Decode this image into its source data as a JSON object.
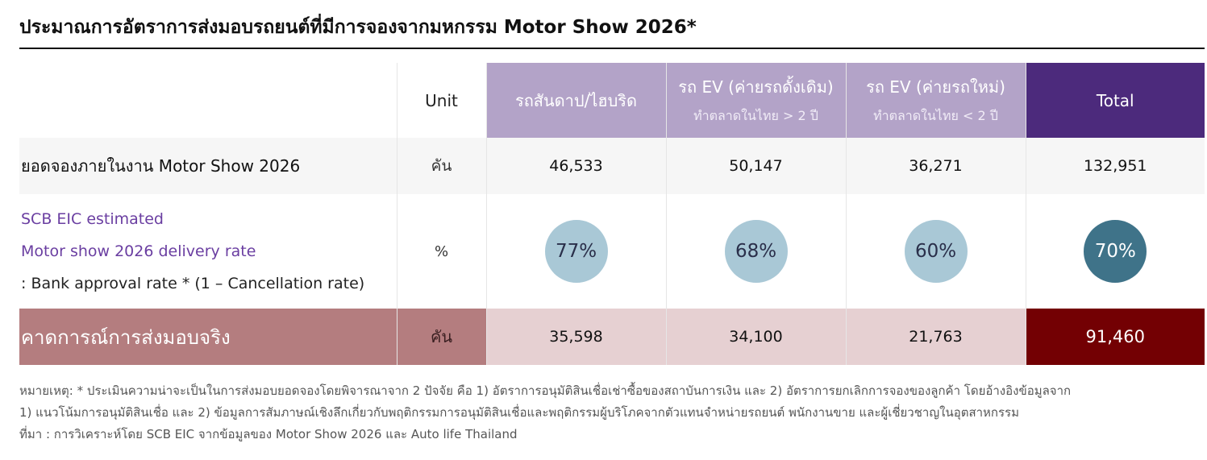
{
  "title": "ประมาณการอัตราการส่งมอบรถยนต์ที่มีการจองจากมหกรรม Motor Show 2026*",
  "header": {
    "unit": "Unit",
    "col1": "รถสันดาป/ไฮบริด",
    "col2": "รถ EV (ค่ายรถดั้งเดิม)",
    "col2_sub": "ทำตลาดในไทย > 2 ปี",
    "col3": "รถ EV (ค่ายรถใหม่)",
    "col3_sub": "ทำตลาดในไทย < 2 ปี",
    "total": "Total"
  },
  "rows": {
    "bookings": {
      "label": "ยอดจองภายในงาน Motor Show 2026",
      "unit": "คัน",
      "values": [
        "46,533",
        "50,147",
        "36,271"
      ],
      "total": "132,951"
    },
    "rate": {
      "label_line1": "SCB EIC estimated",
      "label_line2": "Motor show 2026 delivery rate",
      "label_line3": ": Bank approval rate * (1 – Cancellation rate)",
      "unit": "%",
      "values": [
        "77%",
        "68%",
        "60%"
      ],
      "total": "70%"
    },
    "forecast": {
      "label": "คาดการณ์การส่งมอบจริง",
      "unit": "คัน",
      "values": [
        "35,598",
        "34,100",
        "21,763"
      ],
      "total": "91,460"
    }
  },
  "notes": {
    "line1": "หมายเหตุ: * ประเมินความน่าจะเป็นในการส่งมอบยอดจองโดยพิจารณาจาก 2 ปัจจัย คือ 1) อัตราการอนุมัติสินเชื่อเช่าซื้อของสถาบันการเงิน และ 2) อัตราการยกเลิกการจองของลูกค้า โดยอ้างอิงข้อมูลจาก",
    "line2": "1) แนวโน้มการอนุมัติสินเชื่อ  และ 2) ข้อมูลการสัมภาษณ์เชิงลึกเกี่ยวกับพฤติกรรมการอนุมัติสินเชื่อและพฤติกรรมผู้บริโภคจากตัวแทนจำหน่ายรถยนต์ พนักงานขาย และผู้เชี่ยวชาญในอุตสาหกรรม",
    "line3": "ที่มา : การวิเคราะห์โดย SCB EIC จากข้อมูลของ Motor Show 2026 และ Auto life Thailand"
  },
  "colors": {
    "header_purple": "#b3a3c8",
    "header_total": "#4c2a7c",
    "rate_circle": "#a9c8d6",
    "rate_circle_total": "#3f7389",
    "forecast_label": "#b47d7f",
    "forecast_cell": "#e6d0d2",
    "forecast_total": "#730003",
    "rate_label_text": "#6a3ea1"
  }
}
